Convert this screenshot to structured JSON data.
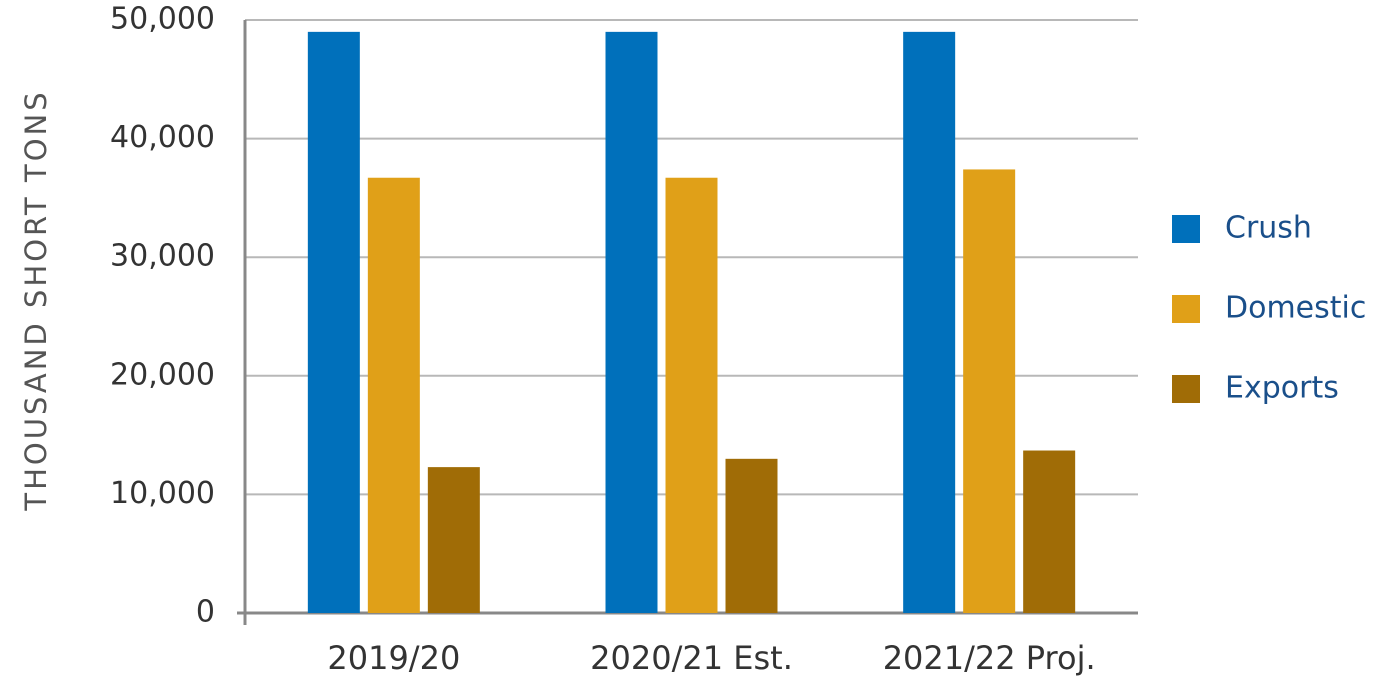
{
  "chart_data": {
    "type": "bar",
    "y_label": "THOUSAND SHORT TONS",
    "categories": [
      "2019/20",
      "2020/21 Est.",
      "2021/22 Proj."
    ],
    "series": [
      {
        "name": "Crush",
        "color": "#0070bb",
        "values": [
          49000,
          49000,
          49000
        ]
      },
      {
        "name": "Domestic",
        "color": "#e0a018",
        "values": [
          36700,
          36700,
          37400
        ]
      },
      {
        "name": "Exports",
        "color": "#a06c06",
        "values": [
          12300,
          13000,
          13700
        ]
      }
    ],
    "ylim": [
      0,
      50000
    ],
    "yticks": [
      0,
      {
        "value": 10000,
        "label": "10,000"
      },
      {
        "value": 20000,
        "label": "20,000"
      },
      {
        "value": 30000,
        "label": "30,000"
      },
      {
        "value": 40000,
        "label": "40,000"
      },
      {
        "value": 50000,
        "label": "50,000"
      }
    ],
    "grid": true,
    "legend": "right"
  }
}
